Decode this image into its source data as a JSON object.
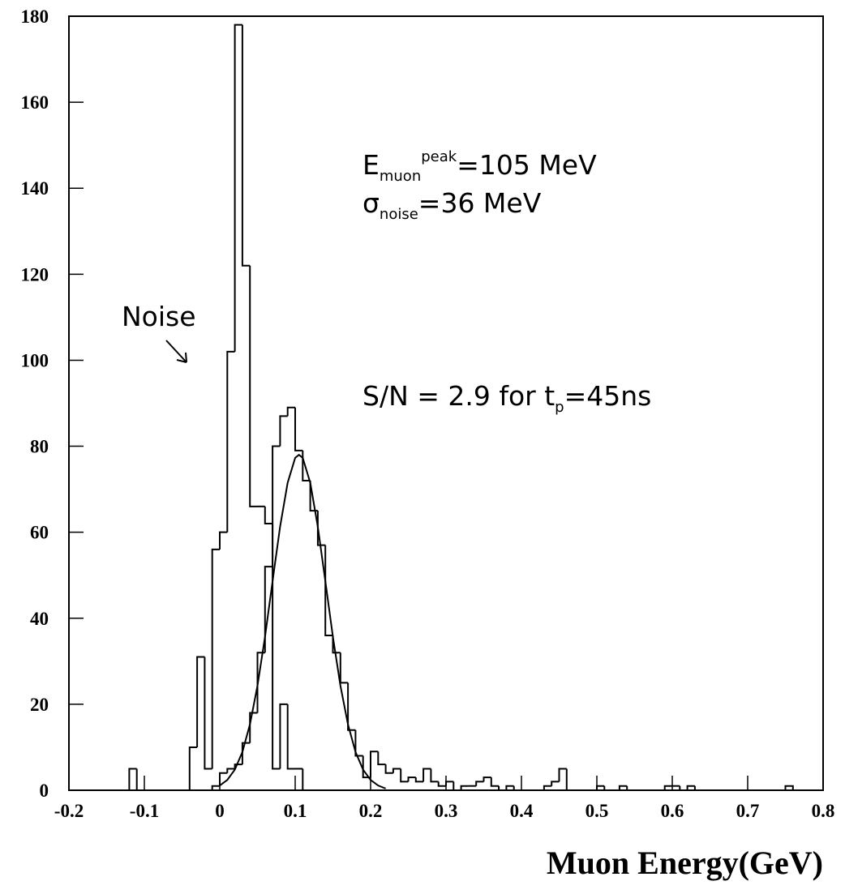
{
  "chart_data": {
    "type": "histogram",
    "xlim": [
      -0.2,
      0.8
    ],
    "ylim": [
      0,
      180
    ],
    "xticks": [
      -0.2,
      -0.1,
      0,
      0.1,
      0.2,
      0.3,
      0.4,
      0.5,
      0.6,
      0.7,
      0.8
    ],
    "yticks": [
      0,
      20,
      40,
      60,
      80,
      100,
      120,
      140,
      160,
      180
    ],
    "xlabel": "Muon Energy(GeV)",
    "bins": [
      -0.12,
      -0.11,
      -0.1,
      -0.09,
      -0.08,
      -0.07,
      -0.06,
      -0.05,
      -0.04,
      -0.03,
      -0.02,
      -0.01,
      0,
      0.01,
      0.02,
      0.03,
      0.04,
      0.05,
      0.06,
      0.07,
      0.08,
      0.09,
      0.1,
      0.11,
      0.12,
      0.13,
      0.14,
      0.15,
      0.16,
      0.17,
      0.18,
      0.19,
      0.2,
      0.21,
      0.22,
      0.23,
      0.24,
      0.25,
      0.26,
      0.27,
      0.28,
      0.29,
      0.3,
      0.31,
      0.32,
      0.33,
      0.34,
      0.35,
      0.36,
      0.37,
      0.38,
      0.39,
      0.4,
      0.41,
      0.42,
      0.43,
      0.44,
      0.45,
      0.46,
      0.47,
      0.48,
      0.49,
      0.5,
      0.51,
      0.52,
      0.53,
      0.54,
      0.55,
      0.56,
      0.57,
      0.58,
      0.59,
      0.6,
      0.61,
      0.62,
      0.63,
      0.64,
      0.65,
      0.66,
      0.67,
      0.68,
      0.69,
      0.7,
      0.71,
      0.72,
      0.73,
      0.74,
      0.75,
      0.76
    ],
    "series": [
      {
        "color": "#000000",
        "values": [
          5,
          0,
          0,
          0,
          0,
          0,
          0,
          0,
          10,
          31,
          5,
          56,
          60,
          102,
          178,
          122,
          66,
          66,
          62,
          5,
          20,
          5,
          5,
          0,
          0,
          0,
          0,
          0,
          0,
          0,
          0,
          0,
          0,
          0,
          0,
          0,
          0,
          0,
          0,
          0,
          0,
          0,
          0,
          0,
          0,
          0,
          0,
          0,
          0,
          0,
          0,
          0,
          0,
          0,
          0,
          0,
          0,
          0,
          0,
          0,
          0,
          0,
          0,
          0,
          0,
          0,
          0,
          0,
          0,
          0,
          0,
          0,
          0,
          0,
          0,
          0,
          0,
          0,
          0,
          0,
          0,
          0,
          0,
          0,
          0,
          0,
          0,
          0
        ]
      },
      {
        "color": "#000000",
        "values": [
          0,
          0,
          0,
          0,
          0,
          0,
          0,
          0,
          0,
          0,
          0,
          1,
          4,
          5,
          6,
          11,
          18,
          32,
          52,
          80,
          87,
          89,
          79,
          72,
          65,
          57,
          36,
          32,
          25,
          14,
          8,
          3,
          9,
          6,
          4,
          5,
          2,
          3,
          2,
          5,
          2,
          1,
          2,
          0,
          1,
          1,
          2,
          3,
          1,
          0,
          1,
          0,
          0,
          0,
          0,
          1,
          2,
          5,
          0,
          0,
          0,
          0,
          1,
          0,
          0,
          1,
          0,
          0,
          0,
          0,
          0,
          1,
          1,
          0,
          1,
          0,
          0,
          0,
          0,
          0,
          0,
          0,
          0,
          0,
          0,
          0,
          0,
          1
        ]
      }
    ],
    "fit": {
      "color": "#000000",
      "x": [
        0,
        0.01,
        0.02,
        0.03,
        0.04,
        0.05,
        0.06,
        0.07,
        0.08,
        0.09,
        0.1,
        0.105,
        0.11,
        0.12,
        0.13,
        0.14,
        0.15,
        0.16,
        0.17,
        0.18,
        0.19,
        0.2,
        0.21,
        0.22
      ],
      "y": [
        1.1,
        2.4,
        4.8,
        8.9,
        15.3,
        24.3,
        35.7,
        48.6,
        61.3,
        71.5,
        77.3,
        78,
        77.3,
        71.5,
        61.3,
        48.6,
        35.7,
        24.3,
        15.3,
        8.9,
        4.8,
        2.4,
        1.1,
        0.4
      ]
    },
    "annotations": [
      {
        "text": "E",
        "sub": "muon",
        "sup": "peak",
        "tail": "=105 MeV"
      },
      {
        "text": "σ",
        "sub": "noise",
        "tail": "=36 MeV"
      },
      {
        "text": "S/N = 2.9 for t",
        "sub": "p",
        "tail": "=45ns"
      },
      {
        "text": "Noise"
      }
    ]
  }
}
